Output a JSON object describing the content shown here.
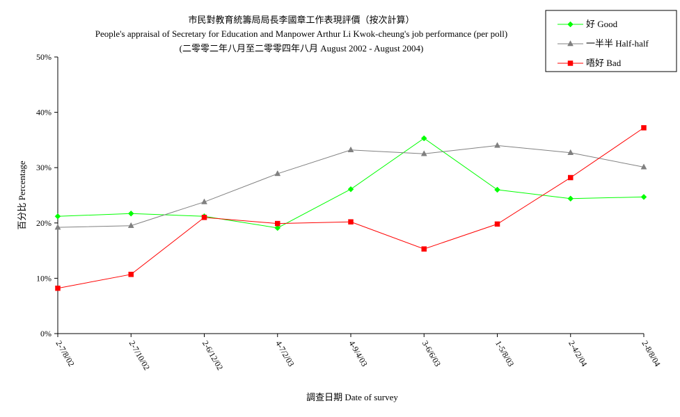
{
  "chart_data": {
    "type": "line",
    "title": "市民對教育統籌局局長李國章工作表現評價（按次計算）",
    "subtitle": "People's appraisal of Secretary for Education and Manpower Arthur Li Kwok-cheung's job performance (per poll)",
    "subtitle2": "(二零零二年八月至二零零四年八月 August 2002 - August 2004)",
    "xlabel": "調查日期 Date of survey",
    "ylabel": "百分比 Percentage",
    "categories": [
      "2-7/8/02",
      "2-7/10/02",
      "2-6/12/02",
      "4-7/2/03",
      "4-9/4/03",
      "3-6/6/03",
      "1-5/8/03",
      "2-4/2/04",
      "2-8/8/04"
    ],
    "y_ticks": [
      "0%",
      "10%",
      "20%",
      "30%",
      "40%",
      "50%"
    ],
    "ylim": [
      0,
      50
    ],
    "grid": false,
    "legend_position": "top-right",
    "series": [
      {
        "name": "好 Good",
        "color": "#00ff00",
        "marker": "diamond",
        "values": [
          21.2,
          21.7,
          21.2,
          19.1,
          26.1,
          35.3,
          26.0,
          24.4,
          24.7
        ]
      },
      {
        "name": "一半半 Half-half",
        "color": "#808080",
        "marker": "triangle",
        "values": [
          19.2,
          19.5,
          23.8,
          28.9,
          33.2,
          32.5,
          34.0,
          32.7,
          30.1
        ]
      },
      {
        "name": "唔好 Bad",
        "color": "#ff0000",
        "marker": "square",
        "values": [
          8.2,
          10.7,
          21.0,
          19.9,
          20.2,
          15.3,
          19.8,
          28.2,
          37.2
        ]
      }
    ]
  }
}
